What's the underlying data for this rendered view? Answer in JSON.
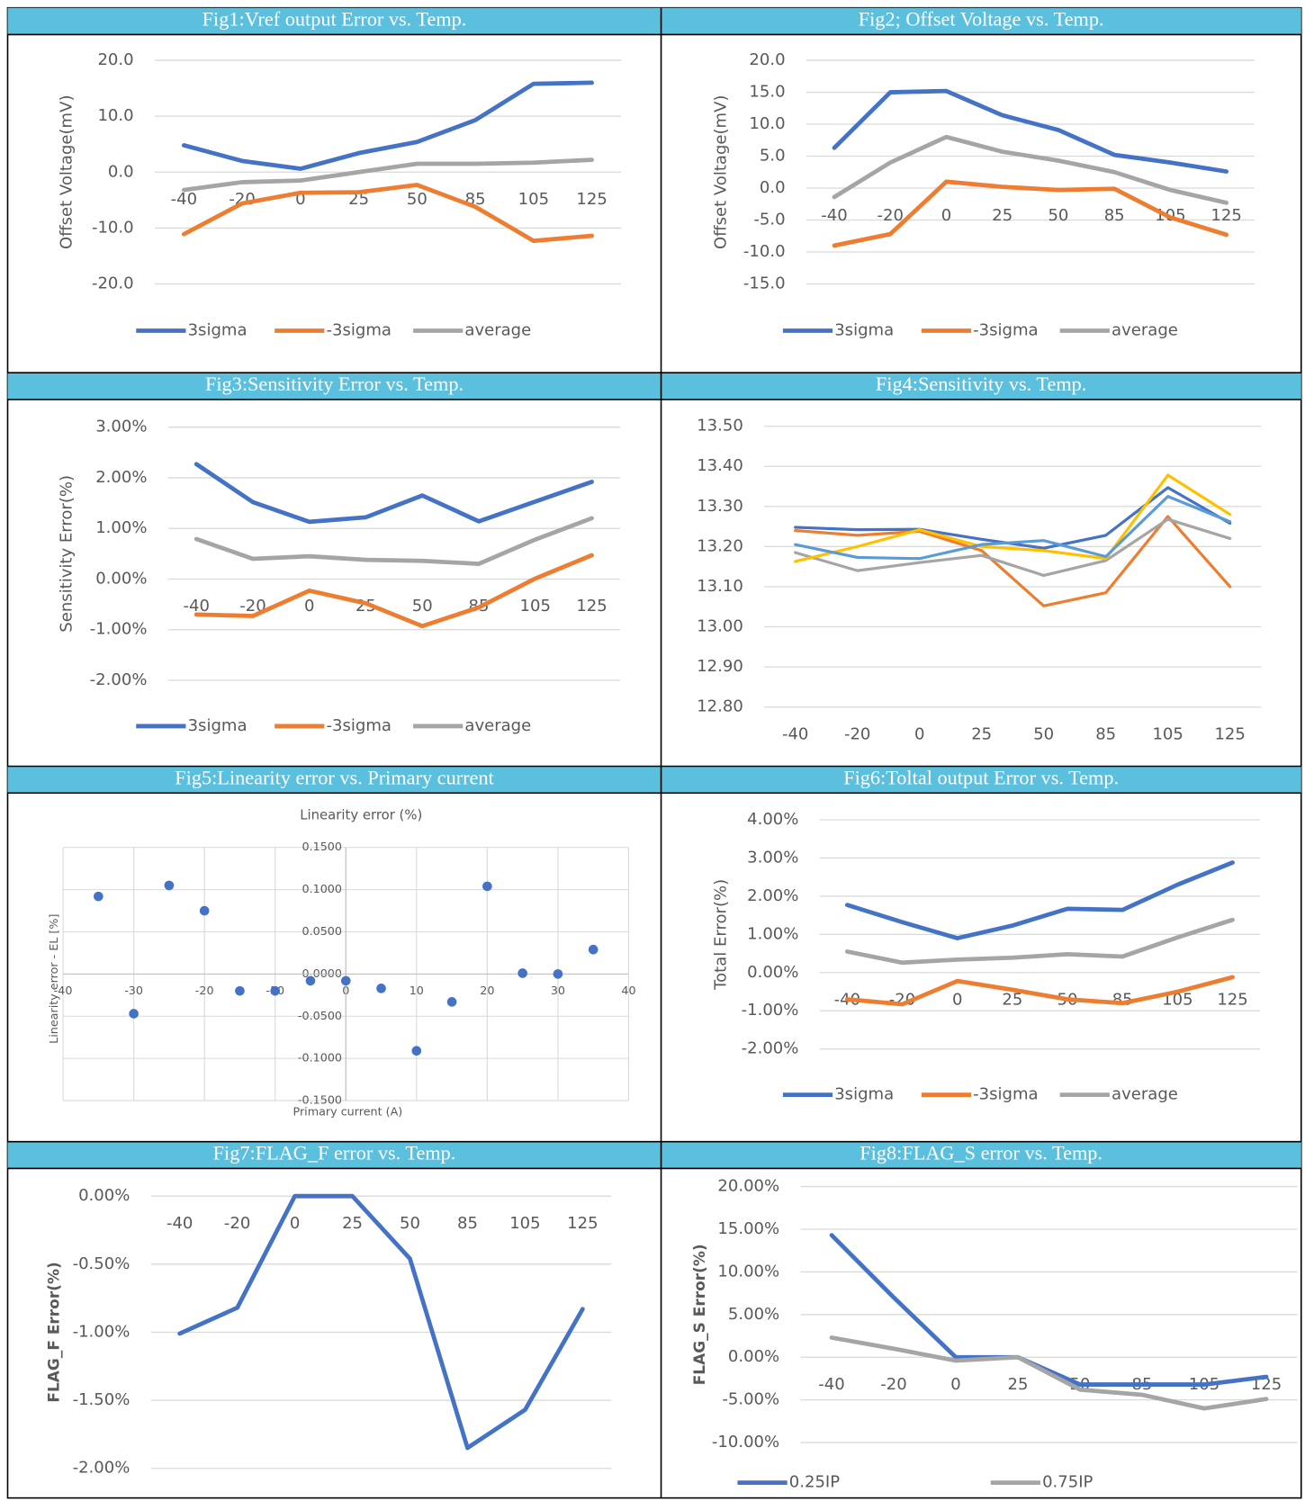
{
  "chart_data": [
    {
      "type": "line",
      "title": "Fig1:Vref output Error vs. Temp.",
      "y_label": "Offset Voltage(mV)",
      "categories": [
        "-40",
        "-20",
        "0",
        "25",
        "50",
        "85",
        "105",
        "125"
      ],
      "series": [
        {
          "name": "3sigma",
          "color": "#4472c4",
          "values": [
            4.8,
            2.0,
            0.6,
            3.4,
            5.4,
            9.3,
            15.8,
            16.0
          ]
        },
        {
          "name": "-3sigma",
          "color": "#ed7d31",
          "values": [
            -11.1,
            -5.6,
            -3.7,
            -3.6,
            -2.3,
            -6.2,
            -12.3,
            -11.4
          ]
        },
        {
          "name": "average",
          "color": "#a5a5a5",
          "values": [
            -3.2,
            -1.8,
            -1.5,
            0.0,
            1.5,
            1.5,
            1.7,
            2.2
          ]
        }
      ],
      "ylim": [
        -20,
        20
      ],
      "yticks": [
        {
          "value": 20,
          "label": "20.0"
        },
        {
          "value": 10,
          "label": "10.0"
        },
        {
          "value": 0,
          "label": "0.0"
        },
        {
          "value": -10,
          "label": "-10.0"
        },
        {
          "value": -20,
          "label": "-20.0"
        }
      ],
      "grid": true,
      "legend": "bottom"
    },
    {
      "type": "line",
      "title": "Fig2; Offset Voltage vs. Temp.",
      "y_label": "Offset Voltage(mV)",
      "categories": [
        "-40",
        "-20",
        "0",
        "25",
        "50",
        "85",
        "105",
        "125"
      ],
      "series": [
        {
          "name": "3sigma",
          "color": "#4472c4",
          "values": [
            6.3,
            15.0,
            15.2,
            11.4,
            9.1,
            5.2,
            4.0,
            2.6
          ]
        },
        {
          "name": "-3sigma",
          "color": "#ed7d31",
          "values": [
            -9.0,
            -7.2,
            1.0,
            0.2,
            -0.3,
            -0.1,
            -4.6,
            -7.3
          ]
        },
        {
          "name": "average",
          "color": "#a5a5a5",
          "values": [
            -1.4,
            4.0,
            8.0,
            5.7,
            4.3,
            2.5,
            -0.3,
            -2.3
          ]
        }
      ],
      "ylim": [
        -15,
        20
      ],
      "yticks": [
        {
          "value": 20,
          "label": "20.0"
        },
        {
          "value": 15,
          "label": "15.0"
        },
        {
          "value": 10,
          "label": "10.0"
        },
        {
          "value": 5,
          "label": "5.0"
        },
        {
          "value": 0,
          "label": "0.0"
        },
        {
          "value": -5,
          "label": "-5.0"
        },
        {
          "value": -10,
          "label": "-10.0"
        },
        {
          "value": -15,
          "label": "-15.0"
        }
      ],
      "grid": true,
      "legend": "bottom"
    },
    {
      "type": "line",
      "title": "Fig3:Sensitivity Error vs. Temp.",
      "y_label": "Sensitivity Error(%)",
      "categories": [
        "-40",
        "-20",
        "0",
        "25",
        "50",
        "85",
        "105",
        "125"
      ],
      "series": [
        {
          "name": "3sigma",
          "color": "#4472c4",
          "values": [
            2.27,
            1.52,
            1.13,
            1.22,
            1.65,
            1.14,
            1.53,
            1.92
          ]
        },
        {
          "name": "-3sigma",
          "color": "#ed7d31",
          "values": [
            -0.7,
            -0.73,
            -0.23,
            -0.48,
            -0.93,
            -0.56,
            0.01,
            0.47
          ]
        },
        {
          "name": "average",
          "color": "#a5a5a5",
          "values": [
            0.79,
            0.4,
            0.45,
            0.38,
            0.36,
            0.3,
            0.78,
            1.2
          ]
        }
      ],
      "ylim": [
        -2,
        3
      ],
      "yticks": [
        {
          "value": 3,
          "label": "3.00%"
        },
        {
          "value": 2,
          "label": "2.00%"
        },
        {
          "value": 1,
          "label": "1.00%"
        },
        {
          "value": 0,
          "label": "0.00%"
        },
        {
          "value": -1,
          "label": "-1.00%"
        },
        {
          "value": -2,
          "label": "-2.00%"
        }
      ],
      "grid": true,
      "legend": "bottom"
    },
    {
      "type": "line",
      "title": "Fig4:Sensitivity vs. Temp.",
      "categories": [
        "-40",
        "-20",
        "0",
        "25",
        "50",
        "85",
        "105",
        "125"
      ],
      "series": [
        {
          "color": "#4472c4",
          "values": [
            13.248,
            13.242,
            13.243,
            13.218,
            13.196,
            13.228,
            13.347,
            13.258
          ]
        },
        {
          "color": "#ed7d31",
          "values": [
            13.24,
            13.228,
            13.238,
            13.19,
            13.052,
            13.085,
            13.275,
            13.1
          ]
        },
        {
          "color": "#a5a5a5",
          "values": [
            13.185,
            13.14,
            13.16,
            13.178,
            13.128,
            13.165,
            13.268,
            13.22
          ]
        },
        {
          "color": "#ffc000",
          "values": [
            13.163,
            13.2,
            13.242,
            13.2,
            13.19,
            13.17,
            13.378,
            13.28
          ]
        },
        {
          "color": "#5b9bd5",
          "values": [
            13.205,
            13.173,
            13.17,
            13.205,
            13.215,
            13.175,
            13.325,
            13.262
          ]
        }
      ],
      "ylim": [
        12.8,
        13.5
      ],
      "yticks": [
        {
          "value": 13.5,
          "label": "13.50"
        },
        {
          "value": 13.4,
          "label": "13.40"
        },
        {
          "value": 13.3,
          "label": "13.30"
        },
        {
          "value": 13.2,
          "label": "13.20"
        },
        {
          "value": 13.1,
          "label": "13.10"
        },
        {
          "value": 13.0,
          "label": "13.00"
        },
        {
          "value": 12.9,
          "label": "12.90"
        },
        {
          "value": 12.8,
          "label": "12.80"
        }
      ],
      "grid": true
    },
    {
      "type": "scatter",
      "title": "Fig5:Linearity error vs. Primary current",
      "subtitle": "Linearity error (%)",
      "x_label": "Primary current (A)",
      "y_label": "Linearity error - EL [%]",
      "x": [
        -35,
        -30,
        -25,
        -20,
        -15,
        -10,
        -5,
        0,
        5,
        10,
        15,
        20,
        25,
        30,
        35
      ],
      "values": [
        0.092,
        -0.047,
        0.105,
        0.075,
        -0.02,
        -0.02,
        -0.008,
        -0.008,
        -0.017,
        -0.091,
        -0.033,
        0.104,
        0.001,
        0.0,
        0.029
      ],
      "color": "#4472c4",
      "xlim": [
        -40,
        40
      ],
      "xticks": [
        -40,
        -30,
        -20,
        -10,
        0,
        10,
        20,
        30,
        40
      ],
      "ylim": [
        -0.15,
        0.15
      ],
      "yticks": [
        {
          "value": 0.15,
          "label": "0.1500"
        },
        {
          "value": 0.1,
          "label": "0.1000"
        },
        {
          "value": 0.05,
          "label": "0.0500"
        },
        {
          "value": 0,
          "label": "0.0000"
        },
        {
          "value": -0.05,
          "label": "-0.0500"
        },
        {
          "value": -0.1,
          "label": "-0.1000"
        },
        {
          "value": -0.15,
          "label": "-0.1500"
        }
      ],
      "grid": true
    },
    {
      "type": "line",
      "title": "Fig6:Toltal output Error vs. Temp.",
      "y_label": "Total Error(%)",
      "categories": [
        "-40",
        "-20",
        "0",
        "25",
        "50",
        "85",
        "105",
        "125"
      ],
      "series": [
        {
          "name": "3sigma",
          "color": "#4472c4",
          "values": [
            1.77,
            1.32,
            0.9,
            1.23,
            1.67,
            1.64,
            2.3,
            2.88
          ]
        },
        {
          "name": "-3sigma",
          "color": "#ed7d31",
          "values": [
            -0.7,
            -0.83,
            -0.22,
            -0.45,
            -0.7,
            -0.8,
            -0.5,
            -0.12
          ]
        },
        {
          "name": "average",
          "color": "#a5a5a5",
          "values": [
            0.55,
            0.26,
            0.34,
            0.39,
            0.48,
            0.42,
            0.92,
            1.38
          ]
        }
      ],
      "ylim": [
        -2,
        4
      ],
      "yticks": [
        {
          "value": 4,
          "label": "4.00%"
        },
        {
          "value": 3,
          "label": "3.00%"
        },
        {
          "value": 2,
          "label": "2.00%"
        },
        {
          "value": 1,
          "label": "1.00%"
        },
        {
          "value": 0,
          "label": "0.00%"
        },
        {
          "value": -1,
          "label": "-1.00%"
        },
        {
          "value": -2,
          "label": "-2.00%"
        }
      ],
      "grid": true,
      "legend": "bottom"
    },
    {
      "type": "line",
      "title": "Fig7:FLAG_F error vs. Temp.",
      "y_label": "FLAG_F Error(%)",
      "categories": [
        "-40",
        "-20",
        "0",
        "25",
        "50",
        "85",
        "105",
        "125"
      ],
      "series": [
        {
          "color": "#4472c4",
          "values": [
            -1.01,
            -0.82,
            0.0,
            0.0,
            -0.46,
            -1.85,
            -1.57,
            -0.83
          ]
        }
      ],
      "ylim": [
        -2,
        0
      ],
      "yticks": [
        {
          "value": 0,
          "label": "0.00%"
        },
        {
          "value": -0.5,
          "label": "-0.50%"
        },
        {
          "value": -1,
          "label": "-1.00%"
        },
        {
          "value": -1.5,
          "label": "-1.50%"
        },
        {
          "value": -2,
          "label": "-2.00%"
        }
      ],
      "grid": true
    },
    {
      "type": "line",
      "title": "Fig8:FLAG_S error vs. Temp.",
      "y_label": "FLAG_S Error(%)",
      "categories": [
        "-40",
        "-20",
        "0",
        "25",
        "50",
        "85",
        "105",
        "125"
      ],
      "series": [
        {
          "name": "0.25IP",
          "color": "#4472c4",
          "values": [
            14.3,
            7.0,
            0.0,
            0.0,
            -3.2,
            -3.2,
            -3.2,
            -2.3
          ]
        },
        {
          "name": "0.75IP",
          "color": "#a5a5a5",
          "values": [
            2.3,
            1.0,
            -0.4,
            0.0,
            -3.8,
            -4.4,
            -6.0,
            -4.9
          ]
        }
      ],
      "ylim": [
        -10,
        20
      ],
      "yticks": [
        {
          "value": 20,
          "label": "20.00%"
        },
        {
          "value": 15,
          "label": "15.00%"
        },
        {
          "value": 10,
          "label": "10.00%"
        },
        {
          "value": 5,
          "label": "5.00%"
        },
        {
          "value": 0,
          "label": "0.00%"
        },
        {
          "value": -5,
          "label": "-5.00%"
        },
        {
          "value": -10,
          "label": "-10.00%"
        }
      ],
      "grid": true,
      "legend": "bottom"
    }
  ]
}
